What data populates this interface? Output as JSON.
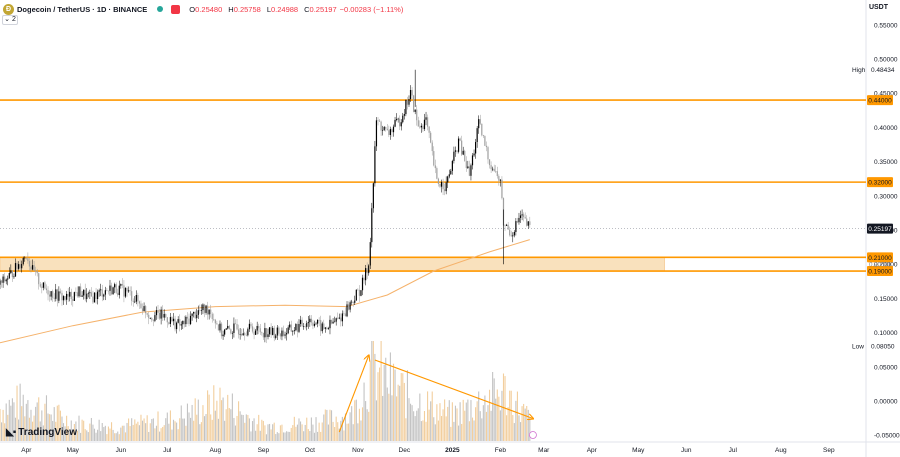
{
  "header": {
    "symbol": "Dogecoin / TetherUS · 1D · BINANCE",
    "open_label": "O",
    "open": "0.25480",
    "high_label": "H",
    "high": "0.25758",
    "low_label": "L",
    "low": "0.24988",
    "close_label": "C",
    "close": "0.25197",
    "change": "−0.00283 (−1.11%)",
    "indicators_count": "2",
    "currency": "USDT"
  },
  "branding": "TradingView",
  "colors": {
    "level_line": "#ff9800",
    "zone_fill": "#f8d8a8",
    "ma_line": "#f5b26b",
    "candle_up": "#000000",
    "candle_down": "#9e9e9e",
    "price_tag_bg": "#131722",
    "volume": "#f0c58c"
  },
  "chart_data": {
    "type": "candlestick",
    "ylim": [
      -0.06,
      0.56
    ],
    "y_ticks": [
      "0.55000",
      "0.50000",
      "0.45000",
      "0.40000",
      "0.35000",
      "0.30000",
      "0.25000",
      "0.20000",
      "0.15000",
      "0.10000",
      "0.05000",
      "0.00000",
      "-0.05000"
    ],
    "x_ticks": [
      "Apr",
      "May",
      "Jun",
      "Jul",
      "Aug",
      "Sep",
      "Oct",
      "Nov",
      "Dec",
      "2025",
      "Feb",
      "Mar",
      "Apr",
      "May",
      "Jun",
      "Jul",
      "Aug",
      "Sep"
    ],
    "levels": [
      0.44,
      0.32,
      0.21,
      0.19
    ],
    "level_labels": [
      "0.44000",
      "0.32000",
      "0.21000",
      "0.19000"
    ],
    "zone": {
      "from": 0.19,
      "to": 0.21,
      "label": "0.20000"
    },
    "high_marker": {
      "label": "High",
      "value": "0.48434",
      "y": 0.48434
    },
    "low_marker": {
      "label": "Low",
      "value": "0.08050",
      "y": 0.0805
    },
    "last_price": {
      "value": "0.25197",
      "y": 0.25197
    },
    "price_path": [
      {
        "d": "2024-03-15",
        "p": 0.17
      },
      {
        "d": "2024-03-22",
        "p": 0.185
      },
      {
        "d": "2024-03-29",
        "p": 0.205
      },
      {
        "d": "2024-04-01",
        "p": 0.215
      },
      {
        "d": "2024-04-05",
        "p": 0.19
      },
      {
        "d": "2024-04-12",
        "p": 0.165
      },
      {
        "d": "2024-04-20",
        "p": 0.155
      },
      {
        "d": "2024-04-27",
        "p": 0.15
      },
      {
        "d": "2024-05-05",
        "p": 0.16
      },
      {
        "d": "2024-05-12",
        "p": 0.15
      },
      {
        "d": "2024-05-20",
        "p": 0.16
      },
      {
        "d": "2024-05-28",
        "p": 0.165
      },
      {
        "d": "2024-06-05",
        "p": 0.16
      },
      {
        "d": "2024-06-12",
        "p": 0.145
      },
      {
        "d": "2024-06-20",
        "p": 0.125
      },
      {
        "d": "2024-06-28",
        "p": 0.125
      },
      {
        "d": "2024-07-05",
        "p": 0.115
      },
      {
        "d": "2024-07-10",
        "p": 0.11
      },
      {
        "d": "2024-07-20",
        "p": 0.13
      },
      {
        "d": "2024-07-28",
        "p": 0.135
      },
      {
        "d": "2024-08-05",
        "p": 0.1
      },
      {
        "d": "2024-08-12",
        "p": 0.105
      },
      {
        "d": "2024-08-25",
        "p": 0.105
      },
      {
        "d": "2024-09-05",
        "p": 0.1
      },
      {
        "d": "2024-09-15",
        "p": 0.1
      },
      {
        "d": "2024-09-25",
        "p": 0.11
      },
      {
        "d": "2024-10-01",
        "p": 0.12
      },
      {
        "d": "2024-10-10",
        "p": 0.105
      },
      {
        "d": "2024-10-20",
        "p": 0.12
      },
      {
        "d": "2024-10-28",
        "p": 0.145
      },
      {
        "d": "2024-11-03",
        "p": 0.165
      },
      {
        "d": "2024-11-08",
        "p": 0.2
      },
      {
        "d": "2024-11-11",
        "p": 0.32
      },
      {
        "d": "2024-11-13",
        "p": 0.41
      },
      {
        "d": "2024-11-20",
        "p": 0.39
      },
      {
        "d": "2024-11-28",
        "p": 0.41
      },
      {
        "d": "2024-12-05",
        "p": 0.45
      },
      {
        "d": "2024-12-10",
        "p": 0.4
      },
      {
        "d": "2024-12-15",
        "p": 0.41
      },
      {
        "d": "2024-12-22",
        "p": 0.32
      },
      {
        "d": "2024-12-28",
        "p": 0.315
      },
      {
        "d": "2025-01-05",
        "p": 0.38
      },
      {
        "d": "2025-01-12",
        "p": 0.33
      },
      {
        "d": "2025-01-18",
        "p": 0.405
      },
      {
        "d": "2025-01-25",
        "p": 0.35
      },
      {
        "d": "2025-02-01",
        "p": 0.32
      },
      {
        "d": "2025-02-03",
        "p": 0.26
      },
      {
        "d": "2025-02-08",
        "p": 0.245
      },
      {
        "d": "2025-02-14",
        "p": 0.27
      },
      {
        "d": "2025-02-20",
        "p": 0.252
      }
    ],
    "ma_path": [
      {
        "d": "2024-03-15",
        "p": 0.085
      },
      {
        "d": "2024-05-01",
        "p": 0.11
      },
      {
        "d": "2024-06-15",
        "p": 0.13
      },
      {
        "d": "2024-08-01",
        "p": 0.138
      },
      {
        "d": "2024-09-15",
        "p": 0.14
      },
      {
        "d": "2024-10-25",
        "p": 0.138
      },
      {
        "d": "2024-11-20",
        "p": 0.155
      },
      {
        "d": "2024-12-20",
        "p": 0.19
      },
      {
        "d": "2025-01-25",
        "p": 0.218
      },
      {
        "d": "2025-02-20",
        "p": 0.236
      }
    ],
    "volume_path": [
      {
        "d": "2024-03-15",
        "v": 0.45
      },
      {
        "d": "2024-04-01",
        "v": 0.55
      },
      {
        "d": "2024-05-01",
        "v": 0.25
      },
      {
        "d": "2024-06-01",
        "v": 0.2
      },
      {
        "d": "2024-07-05",
        "v": 0.3
      },
      {
        "d": "2024-08-05",
        "v": 0.55
      },
      {
        "d": "2024-09-01",
        "v": 0.2
      },
      {
        "d": "2024-10-01",
        "v": 0.25
      },
      {
        "d": "2024-10-28",
        "v": 0.35
      },
      {
        "d": "2024-11-11",
        "v": 1.0
      },
      {
        "d": "2024-12-05",
        "v": 0.6
      },
      {
        "d": "2025-01-01",
        "v": 0.35
      },
      {
        "d": "2025-02-03",
        "v": 0.7
      },
      {
        "d": "2025-02-20",
        "v": 0.3
      }
    ],
    "arrows": [
      {
        "from": {
          "d": "2024-10-20",
          "v": 0.1
        },
        "to": {
          "d": "2024-11-08",
          "v": 0.95
        }
      },
      {
        "from": {
          "d": "2024-11-12",
          "v": 0.9
        },
        "to": {
          "d": "2025-02-22",
          "v": 0.25
        }
      }
    ]
  }
}
